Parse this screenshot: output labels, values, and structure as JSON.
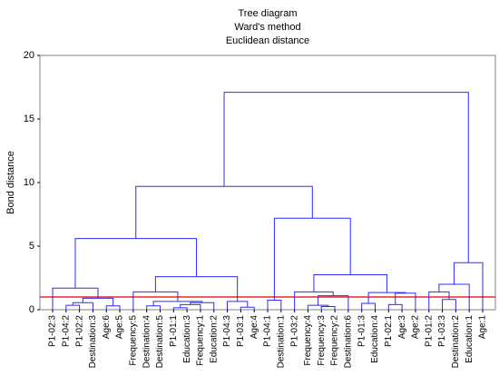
{
  "chart_data": {
    "type": "dendrogram",
    "title": "Tree diagram",
    "subtitle": "Ward's method",
    "subtitle2": "Euclidean distance",
    "ylabel": "Bond distance",
    "categories": [
      "P1-02:3",
      "P1-04:2",
      "P1-02:2",
      "Destination:3",
      "Age:6",
      "Age:5",
      "Frequency:5",
      "Destination:4",
      "Destination:5",
      "P1-01:1",
      "Education:3",
      "Frequency:1",
      "Education:2",
      "P1-04:3",
      "P1-03:1",
      "Age:4",
      "P1-04:1",
      "Destination:1",
      "P1-03:2",
      "Frequency:4",
      "Frequency:3",
      "Frequency:2",
      "Destination:6",
      "P1-01:3",
      "Education:4",
      "P1-02:1",
      "Age:3",
      "Age:2",
      "P1-01:2",
      "P1-03:3",
      "Destination:2",
      "Education:1",
      "Age:1"
    ],
    "merges": [
      [
        1,
        2,
        0.35
      ],
      [
        33,
        3,
        0.55
      ],
      [
        4,
        5,
        0.3
      ],
      [
        34,
        35,
        0.9
      ],
      [
        0,
        36,
        1.7
      ],
      [
        7,
        8,
        0.3
      ],
      [
        9,
        10,
        0.15
      ],
      [
        39,
        11,
        0.4
      ],
      [
        40,
        12,
        0.55
      ],
      [
        38,
        41,
        0.65
      ],
      [
        6,
        42,
        1.4
      ],
      [
        14,
        15,
        0.2
      ],
      [
        13,
        44,
        0.65
      ],
      [
        43,
        45,
        2.6
      ],
      [
        37,
        46,
        5.6
      ],
      [
        16,
        17,
        0.75
      ],
      [
        20,
        21,
        0.25
      ],
      [
        19,
        49,
        0.35
      ],
      [
        50,
        22,
        1.1
      ],
      [
        18,
        51,
        1.4
      ],
      [
        23,
        24,
        0.5
      ],
      [
        25,
        26,
        0.4
      ],
      [
        54,
        27,
        1.3
      ],
      [
        53,
        55,
        1.35
      ],
      [
        52,
        56,
        2.75
      ],
      [
        48,
        57,
        7.2
      ],
      [
        47,
        58,
        9.7
      ],
      [
        29,
        30,
        0.8
      ],
      [
        28,
        60,
        1.4
      ],
      [
        61,
        31,
        2.0
      ],
      [
        62,
        32,
        3.7
      ],
      [
        59,
        63,
        17.1
      ]
    ],
    "color": "#2b2bff",
    "cutoff": 1,
    "cutoff_color": "#e00000",
    "ylim": [
      0,
      20
    ],
    "yticks": [
      0,
      5,
      10,
      15,
      20
    ]
  }
}
